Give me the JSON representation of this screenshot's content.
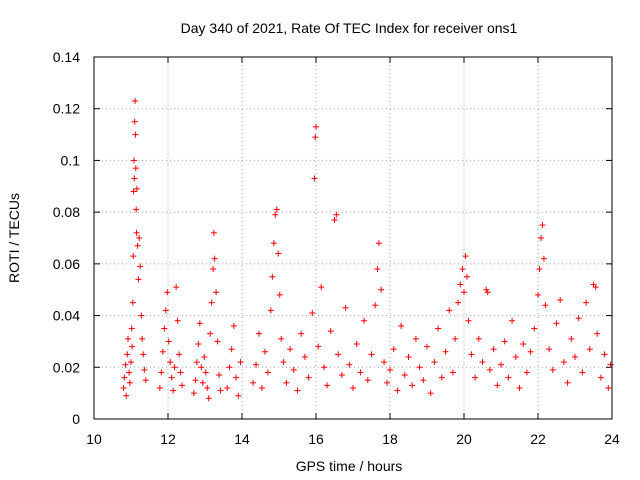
{
  "chart_data": {
    "type": "scatter",
    "title": "Day 340 of 2021, Rate Of TEC Index for receiver ons1",
    "xlabel": "GPS time / hours",
    "ylabel": "ROTI / TECUs",
    "xlim": [
      10,
      24
    ],
    "ylim": [
      0,
      0.14
    ],
    "x_ticks": [
      10,
      12,
      14,
      16,
      18,
      20,
      22,
      24
    ],
    "x_tick_labels": [
      "10",
      "12",
      "14",
      "16",
      "18",
      "20",
      "22",
      "24"
    ],
    "y_ticks": [
      0,
      0.02,
      0.04,
      0.06,
      0.08,
      0.1,
      0.12,
      0.14
    ],
    "y_tick_labels": [
      "0",
      "0.02",
      "0.04",
      "0.06",
      "0.08",
      "0.1",
      "0.12",
      "0.14"
    ],
    "grid": true,
    "marker": "plus",
    "series_color": "#ff0000",
    "series": [
      {
        "name": "ROTI",
        "points": [
          [
            10.8,
            0.012
          ],
          [
            10.82,
            0.016
          ],
          [
            10.85,
            0.021
          ],
          [
            10.87,
            0.009
          ],
          [
            10.9,
            0.025
          ],
          [
            10.92,
            0.031
          ],
          [
            10.95,
            0.018
          ],
          [
            10.97,
            0.014
          ],
          [
            11.0,
            0.022
          ],
          [
            11.02,
            0.035
          ],
          [
            11.03,
            0.028
          ],
          [
            11.05,
            0.045
          ],
          [
            11.06,
            0.063
          ],
          [
            11.07,
            0.088
          ],
          [
            11.08,
            0.1
          ],
          [
            11.09,
            0.093
          ],
          [
            11.1,
            0.115
          ],
          [
            11.11,
            0.123
          ],
          [
            11.12,
            0.11
          ],
          [
            11.13,
            0.097
          ],
          [
            11.14,
            0.081
          ],
          [
            11.15,
            0.072
          ],
          [
            11.16,
            0.089
          ],
          [
            11.18,
            0.067
          ],
          [
            11.2,
            0.054
          ],
          [
            11.22,
            0.07
          ],
          [
            11.25,
            0.059
          ],
          [
            11.28,
            0.04
          ],
          [
            11.3,
            0.031
          ],
          [
            11.33,
            0.025
          ],
          [
            11.36,
            0.019
          ],
          [
            11.4,
            0.015
          ],
          [
            11.78,
            0.012
          ],
          [
            11.82,
            0.018
          ],
          [
            11.86,
            0.026
          ],
          [
            11.9,
            0.035
          ],
          [
            11.94,
            0.042
          ],
          [
            11.98,
            0.049
          ],
          [
            12.02,
            0.03
          ],
          [
            12.06,
            0.022
          ],
          [
            12.1,
            0.016
          ],
          [
            12.14,
            0.011
          ],
          [
            12.18,
            0.02
          ],
          [
            12.22,
            0.051
          ],
          [
            12.26,
            0.038
          ],
          [
            12.3,
            0.025
          ],
          [
            12.34,
            0.018
          ],
          [
            12.38,
            0.013
          ],
          [
            12.7,
            0.01
          ],
          [
            12.74,
            0.015
          ],
          [
            12.78,
            0.022
          ],
          [
            12.82,
            0.029
          ],
          [
            12.86,
            0.037
          ],
          [
            12.9,
            0.02
          ],
          [
            12.94,
            0.014
          ],
          [
            12.98,
            0.024
          ],
          [
            13.02,
            0.018
          ],
          [
            13.06,
            0.012
          ],
          [
            13.1,
            0.008
          ],
          [
            13.14,
            0.033
          ],
          [
            13.18,
            0.045
          ],
          [
            13.22,
            0.058
          ],
          [
            13.24,
            0.072
          ],
          [
            13.26,
            0.062
          ],
          [
            13.3,
            0.049
          ],
          [
            13.34,
            0.03
          ],
          [
            13.38,
            0.017
          ],
          [
            13.42,
            0.011
          ],
          [
            13.6,
            0.012
          ],
          [
            13.66,
            0.02
          ],
          [
            13.72,
            0.027
          ],
          [
            13.78,
            0.036
          ],
          [
            13.84,
            0.016
          ],
          [
            13.9,
            0.009
          ],
          [
            13.96,
            0.022
          ],
          [
            14.3,
            0.014
          ],
          [
            14.38,
            0.021
          ],
          [
            14.46,
            0.033
          ],
          [
            14.54,
            0.012
          ],
          [
            14.62,
            0.026
          ],
          [
            14.7,
            0.018
          ],
          [
            14.78,
            0.042
          ],
          [
            14.82,
            0.055
          ],
          [
            14.86,
            0.068
          ],
          [
            14.9,
            0.079
          ],
          [
            14.94,
            0.081
          ],
          [
            14.98,
            0.064
          ],
          [
            15.02,
            0.048
          ],
          [
            15.06,
            0.031
          ],
          [
            15.12,
            0.022
          ],
          [
            15.2,
            0.014
          ],
          [
            15.3,
            0.027
          ],
          [
            15.4,
            0.019
          ],
          [
            15.5,
            0.011
          ],
          [
            15.6,
            0.033
          ],
          [
            15.7,
            0.024
          ],
          [
            15.8,
            0.016
          ],
          [
            15.9,
            0.041
          ],
          [
            15.96,
            0.093
          ],
          [
            15.98,
            0.109
          ],
          [
            16.0,
            0.113
          ],
          [
            16.06,
            0.028
          ],
          [
            16.14,
            0.051
          ],
          [
            16.22,
            0.02
          ],
          [
            16.3,
            0.013
          ],
          [
            16.4,
            0.034
          ],
          [
            16.5,
            0.077
          ],
          [
            16.55,
            0.079
          ],
          [
            16.6,
            0.025
          ],
          [
            16.7,
            0.017
          ],
          [
            16.8,
            0.043
          ],
          [
            16.9,
            0.021
          ],
          [
            17.0,
            0.012
          ],
          [
            17.1,
            0.029
          ],
          [
            17.2,
            0.018
          ],
          [
            17.3,
            0.038
          ],
          [
            17.4,
            0.015
          ],
          [
            17.5,
            0.025
          ],
          [
            17.6,
            0.044
          ],
          [
            17.66,
            0.058
          ],
          [
            17.7,
            0.068
          ],
          [
            17.76,
            0.05
          ],
          [
            17.84,
            0.022
          ],
          [
            17.92,
            0.014
          ],
          [
            18.0,
            0.019
          ],
          [
            18.1,
            0.027
          ],
          [
            18.2,
            0.011
          ],
          [
            18.3,
            0.036
          ],
          [
            18.4,
            0.017
          ],
          [
            18.5,
            0.024
          ],
          [
            18.6,
            0.013
          ],
          [
            18.7,
            0.031
          ],
          [
            18.8,
            0.02
          ],
          [
            18.9,
            0.015
          ],
          [
            19.0,
            0.028
          ],
          [
            19.1,
            0.01
          ],
          [
            19.2,
            0.022
          ],
          [
            19.3,
            0.035
          ],
          [
            19.4,
            0.016
          ],
          [
            19.5,
            0.026
          ],
          [
            19.6,
            0.042
          ],
          [
            19.7,
            0.018
          ],
          [
            19.76,
            0.031
          ],
          [
            19.84,
            0.045
          ],
          [
            19.9,
            0.052
          ],
          [
            19.96,
            0.058
          ],
          [
            20.0,
            0.049
          ],
          [
            20.04,
            0.063
          ],
          [
            20.08,
            0.055
          ],
          [
            20.12,
            0.038
          ],
          [
            20.2,
            0.025
          ],
          [
            20.3,
            0.016
          ],
          [
            20.4,
            0.031
          ],
          [
            20.5,
            0.022
          ],
          [
            20.6,
            0.05
          ],
          [
            20.64,
            0.049
          ],
          [
            20.7,
            0.019
          ],
          [
            20.8,
            0.027
          ],
          [
            20.9,
            0.013
          ],
          [
            21.0,
            0.021
          ],
          [
            21.1,
            0.03
          ],
          [
            21.2,
            0.016
          ],
          [
            21.3,
            0.038
          ],
          [
            21.4,
            0.024
          ],
          [
            21.5,
            0.012
          ],
          [
            21.6,
            0.029
          ],
          [
            21.7,
            0.018
          ],
          [
            21.8,
            0.026
          ],
          [
            21.9,
            0.035
          ],
          [
            22.0,
            0.048
          ],
          [
            22.04,
            0.058
          ],
          [
            22.08,
            0.07
          ],
          [
            22.12,
            0.075
          ],
          [
            22.16,
            0.062
          ],
          [
            22.2,
            0.044
          ],
          [
            22.3,
            0.027
          ],
          [
            22.4,
            0.019
          ],
          [
            22.5,
            0.037
          ],
          [
            22.6,
            0.046
          ],
          [
            22.7,
            0.022
          ],
          [
            22.8,
            0.014
          ],
          [
            22.9,
            0.031
          ],
          [
            23.0,
            0.024
          ],
          [
            23.1,
            0.039
          ],
          [
            23.2,
            0.018
          ],
          [
            23.3,
            0.045
          ],
          [
            23.4,
            0.027
          ],
          [
            23.5,
            0.052
          ],
          [
            23.56,
            0.051
          ],
          [
            23.6,
            0.033
          ],
          [
            23.7,
            0.016
          ],
          [
            23.8,
            0.025
          ],
          [
            23.9,
            0.012
          ],
          [
            23.96,
            0.021
          ]
        ]
      }
    ]
  }
}
